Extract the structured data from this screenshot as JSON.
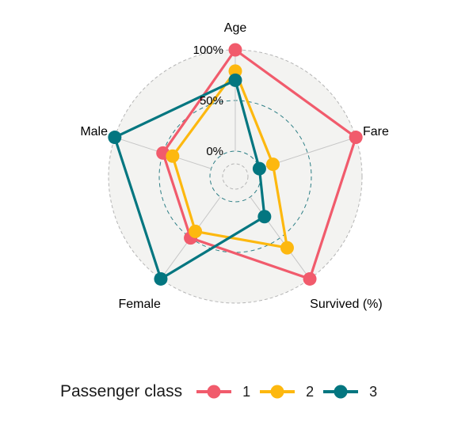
{
  "chart_data": {
    "type": "radar",
    "axes": [
      "Age",
      "Fare",
      "Survived (%)",
      "Female",
      "Male"
    ],
    "grid_labels": [
      "0%",
      "50%",
      "100%"
    ],
    "grid_values": [
      0,
      50,
      100
    ],
    "range": [
      -25,
      100
    ],
    "series": [
      {
        "name": "1",
        "color": "#f15b6c",
        "values": [
          100,
          100,
          100,
          50,
          50
        ]
      },
      {
        "name": "2",
        "color": "#fdb80f",
        "values": [
          79,
          14,
          62,
          42,
          40
        ]
      },
      {
        "name": "3",
        "color": "#037680",
        "values": [
          70,
          0,
          24,
          100,
          100
        ]
      }
    ]
  },
  "legend": {
    "title": "Passenger class",
    "items": [
      {
        "label": "1",
        "color": "#f15b6c"
      },
      {
        "label": "2",
        "color": "#fdb80f"
      },
      {
        "label": "3",
        "color": "#037680"
      }
    ]
  }
}
